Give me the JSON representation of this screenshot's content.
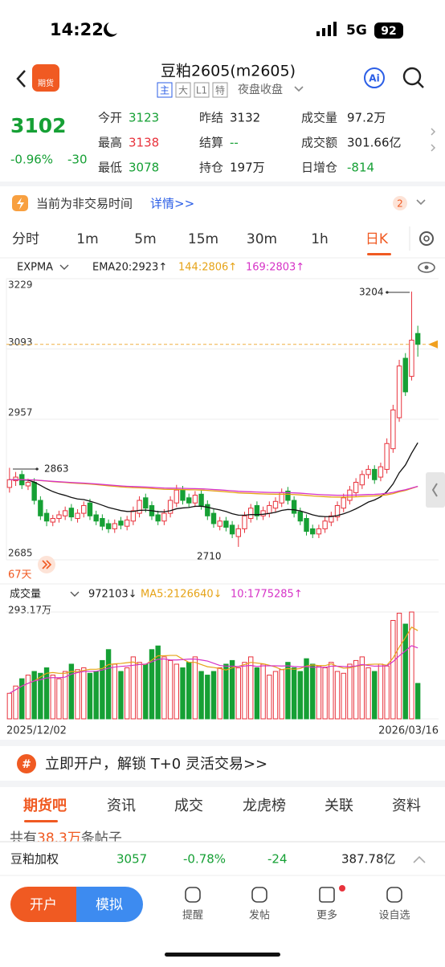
{
  "status": {
    "time": "14:22",
    "network": "5G",
    "battery": "92"
  },
  "header": {
    "title": "豆粕2605(m2605)",
    "tags": [
      "主",
      "大",
      "L1",
      "特"
    ],
    "session": "夜盘收盘",
    "logo": "期货",
    "ai": "Ai"
  },
  "quote": {
    "price": "3102",
    "change_pct": "-0.96%",
    "change": "-30",
    "stats": [
      [
        "今开",
        "3123"
      ],
      [
        "昨结",
        "3132"
      ],
      [
        "成交量",
        "97.2万"
      ],
      [
        "最高",
        "3138"
      ],
      [
        "结算",
        "--"
      ],
      [
        "成交额",
        "301.66亿"
      ],
      [
        "最低",
        "3078"
      ],
      [
        "持仓",
        "197万"
      ],
      [
        "日增仓",
        "-814"
      ]
    ]
  },
  "notice": {
    "text": "当前为非交易时间",
    "link": "详情>>",
    "badge": "2"
  },
  "periods": [
    "分时",
    "1m",
    "5m",
    "15m",
    "30m",
    "1h",
    "日K"
  ],
  "indicator": {
    "name": "EXPMA",
    "ema20": "EMA20:2923↑",
    "ema144": "144:2806↑",
    "ema169": "169:2803↑"
  },
  "annotations": {
    "high": "3204",
    "left": "2863",
    "low": "2710",
    "days": "67天"
  },
  "volume_header": {
    "name": "成交量",
    "value": "972103↓",
    "ma5": "MA5:2126640↓",
    "ma10": "10:1775285↑",
    "max": "293.17万"
  },
  "dates": [
    "2025/12/02",
    "2026/03/16"
  ],
  "chart_data": [
    {
      "type": "candlestick",
      "ylim": [
        2685,
        3229
      ],
      "yticks": [
        3229,
        3093,
        2957,
        2685
      ],
      "grid": true,
      "up_color": "#e8323c",
      "down_color": "#16a035",
      "open": [
        2825,
        2838,
        2850,
        2828,
        2835,
        2800,
        2775,
        2758,
        2765,
        2770,
        2785,
        2765,
        2775,
        2795,
        2772,
        2765,
        2755,
        2745,
        2760,
        2750,
        2760,
        2775,
        2805,
        2790,
        2772,
        2760,
        2775,
        2795,
        2820,
        2805,
        2795,
        2812,
        2792,
        2775,
        2750,
        2760,
        2752,
        2730,
        2745,
        2765,
        2790,
        2770,
        2775,
        2785,
        2795,
        2818,
        2800,
        2778,
        2765,
        2745,
        2735,
        2745,
        2758,
        2768,
        2785,
        2800,
        2815,
        2830,
        2850,
        2860,
        2845,
        2860,
        2900,
        2960,
        3075,
        3040,
        3123
      ],
      "high": [
        2863,
        2855,
        2858,
        2842,
        2843,
        2808,
        2783,
        2772,
        2780,
        2788,
        2793,
        2783,
        2798,
        2803,
        2780,
        2773,
        2763,
        2763,
        2768,
        2770,
        2788,
        2808,
        2813,
        2798,
        2780,
        2783,
        2808,
        2830,
        2828,
        2813,
        2818,
        2820,
        2800,
        2783,
        2768,
        2768,
        2760,
        2753,
        2778,
        2793,
        2798,
        2788,
        2798,
        2806,
        2823,
        2826,
        2808,
        2786,
        2773,
        2753,
        2753,
        2768,
        2778,
        2798,
        2813,
        2828,
        2843,
        2858,
        2868,
        2868,
        2873,
        2920,
        2985,
        3072,
        3085,
        3204,
        3138
      ],
      "low": [
        2815,
        2828,
        2822,
        2820,
        2792,
        2762,
        2750,
        2750,
        2757,
        2762,
        2760,
        2757,
        2767,
        2762,
        2752,
        2742,
        2737,
        2737,
        2744,
        2742,
        2752,
        2767,
        2777,
        2762,
        2752,
        2752,
        2767,
        2787,
        2792,
        2787,
        2787,
        2782,
        2762,
        2747,
        2742,
        2740,
        2727,
        2710,
        2737,
        2757,
        2762,
        2762,
        2767,
        2777,
        2787,
        2792,
        2767,
        2752,
        2732,
        2727,
        2727,
        2737,
        2750,
        2760,
        2777,
        2792,
        2807,
        2822,
        2842,
        2832,
        2837,
        2852,
        2892,
        2952,
        3002,
        3032,
        3078
      ],
      "close": [
        2840,
        2845,
        2830,
        2835,
        2800,
        2770,
        2760,
        2765,
        2772,
        2780,
        2768,
        2775,
        2790,
        2770,
        2760,
        2750,
        2745,
        2755,
        2752,
        2762,
        2780,
        2800,
        2785,
        2770,
        2760,
        2775,
        2800,
        2820,
        2800,
        2795,
        2810,
        2790,
        2770,
        2755,
        2760,
        2748,
        2735,
        2745,
        2770,
        2785,
        2770,
        2780,
        2790,
        2798,
        2815,
        2800,
        2775,
        2760,
        2740,
        2735,
        2745,
        2760,
        2770,
        2790,
        2805,
        2820,
        2835,
        2850,
        2860,
        2840,
        2865,
        2910,
        2975,
        3060,
        3010,
        3110,
        3102
      ],
      "last": 3102
    },
    {
      "type": "bar",
      "ylim": [
        0,
        2931700
      ],
      "values": [
        700000,
        900000,
        1100000,
        1200000,
        1300000,
        1250000,
        1400000,
        1200000,
        1100000,
        1300000,
        1500000,
        1350000,
        1400000,
        1250000,
        1300000,
        1600000,
        1900000,
        1500000,
        1300000,
        1400000,
        1700000,
        1550000,
        1500000,
        1900000,
        2000000,
        1700000,
        1600000,
        1500000,
        1400000,
        1550000,
        1700000,
        1300000,
        1200000,
        1300000,
        1400000,
        1500000,
        1600000,
        1400000,
        1550000,
        1700000,
        1400000,
        1500000,
        1200000,
        1300000,
        1350000,
        1550000,
        1400000,
        1300000,
        1650000,
        1500000,
        1450000,
        1400000,
        1550000,
        1300000,
        1250000,
        1500000,
        1600000,
        1700000,
        1400000,
        1300000,
        1500000,
        1450000,
        2700000,
        2900000,
        2600000,
        2931700,
        972103
      ]
    }
  ],
  "banner": "立即开户，解锁 T+0 灵活交易>>",
  "tabs": [
    "期货吧",
    "资讯",
    "成交",
    "龙虎榜",
    "关联",
    "资料"
  ],
  "posts": {
    "prefix": "共有",
    "count": "38.3万",
    "suffix": "条帖子"
  },
  "ticker": {
    "name": "豆粕加权",
    "price": "3057",
    "pct": "-0.78%",
    "change": "-24",
    "amount": "387.78亿"
  },
  "nav": {
    "open": "开户",
    "sim": "模拟",
    "items": [
      "提醒",
      "发帖",
      "更多",
      "设自选"
    ]
  }
}
